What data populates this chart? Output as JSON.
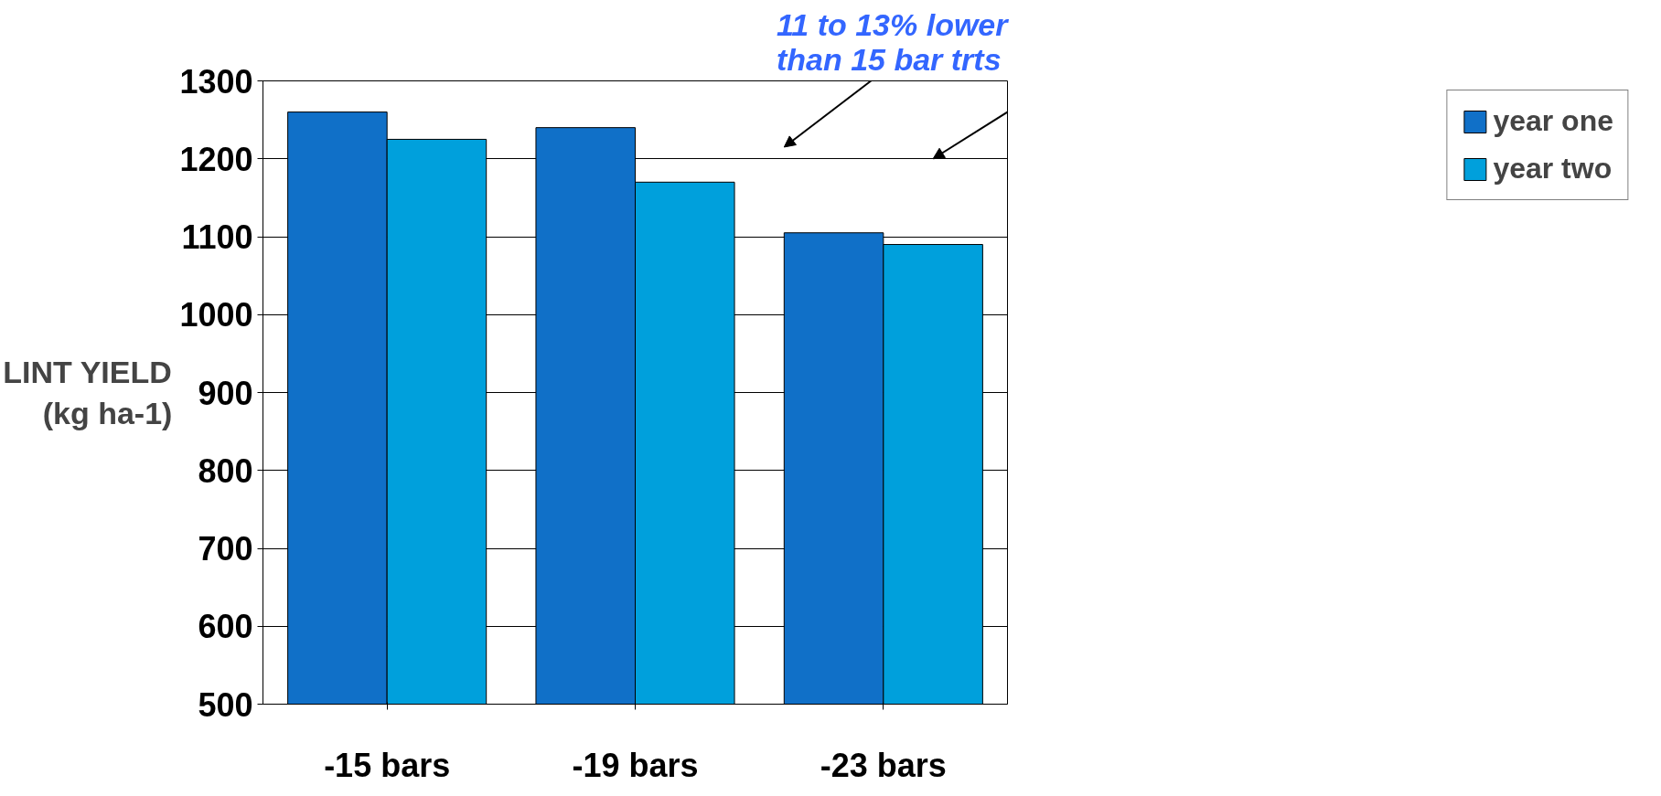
{
  "chart_data": {
    "type": "bar",
    "categories": [
      "-15 bars",
      "-19 bars",
      "-23 bars"
    ],
    "series": [
      {
        "name": "year one",
        "color": "#1070c8",
        "values": [
          1260,
          1240,
          1105
        ]
      },
      {
        "name": "year two",
        "color": "#00a0dc",
        "values": [
          1225,
          1170,
          1090
        ]
      }
    ],
    "ylabel": "LINT YIELD\n(kg ha-1)",
    "ylim": [
      500,
      1300
    ],
    "yticks": [
      500,
      600,
      700,
      800,
      900,
      1000,
      1100,
      1200,
      1300
    ],
    "annotations": [
      "11 to 13% lower\nthan 15 bar trts"
    ],
    "grid": "y",
    "legend": "right"
  }
}
